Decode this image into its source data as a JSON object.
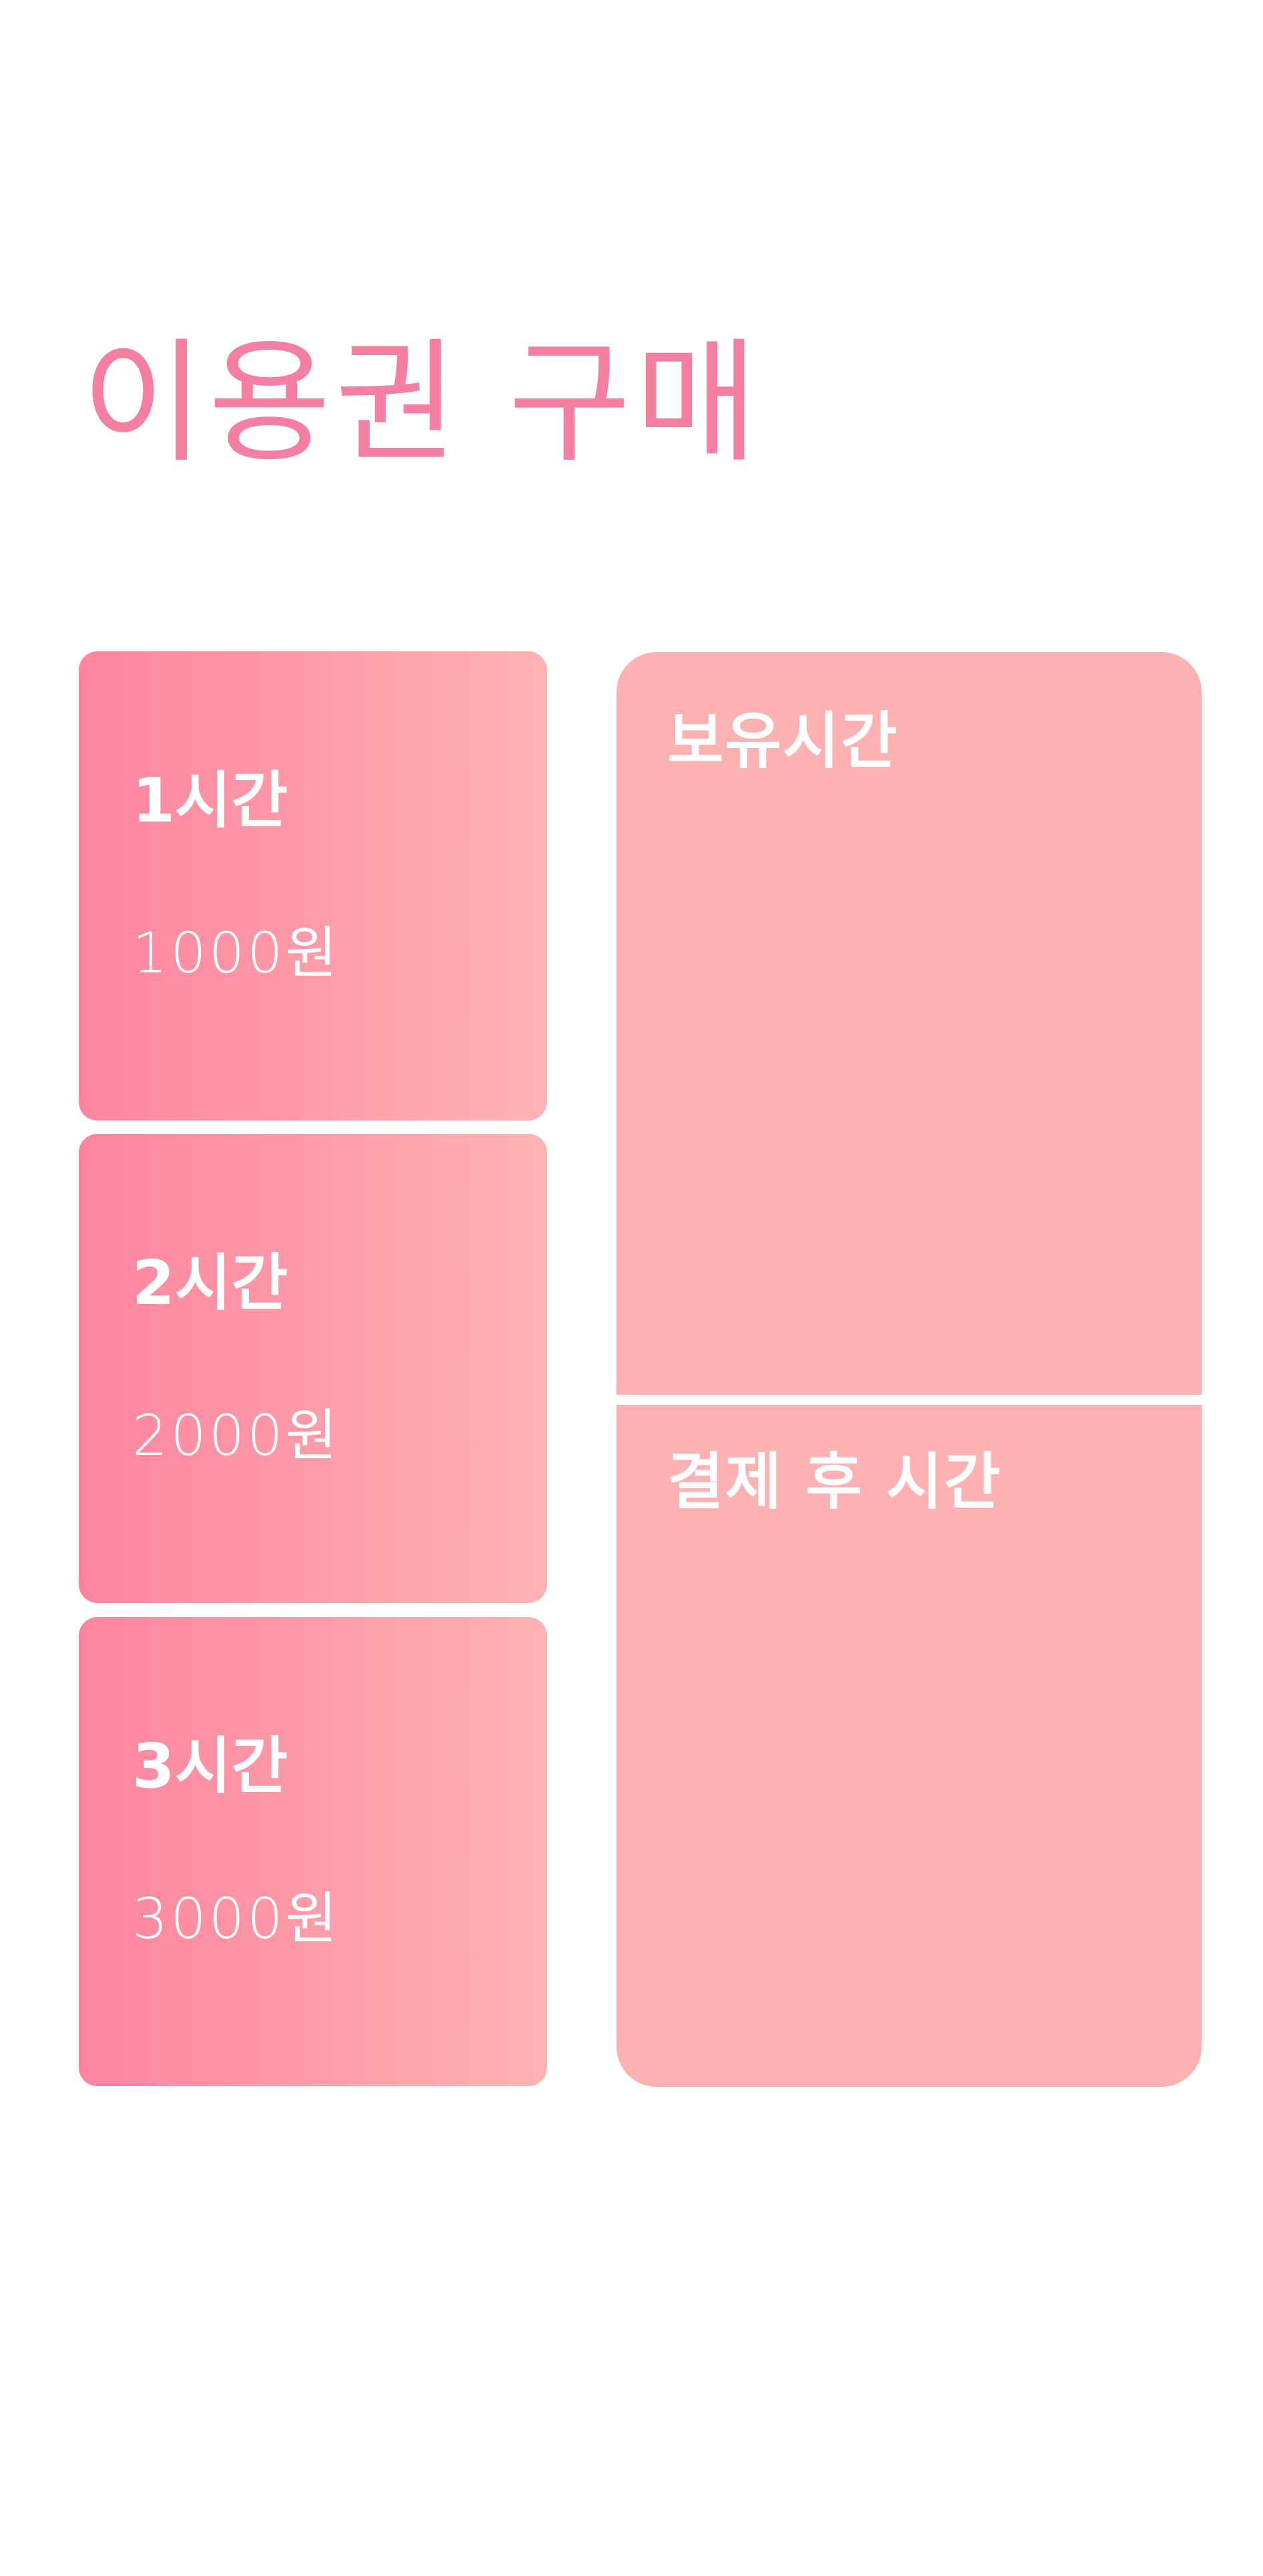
{
  "header": {
    "title": "이용권 구매"
  },
  "tickets": [
    {
      "name": "1시간",
      "price": "1000원"
    },
    {
      "name": "2시간",
      "price": "2000원"
    },
    {
      "name": "3시간",
      "price": "3000원"
    }
  ],
  "panels": {
    "owned_time": {
      "label": "보유시간"
    },
    "after_payment_time": {
      "label": "결제 후 시간"
    }
  },
  "colors": {
    "title": "#f57fa0",
    "ticket_gradient_start": "#fe849e",
    "ticket_gradient_end": "#feb3b4",
    "panel_background": "#feb1b3",
    "text_on_color": "#ffffff"
  }
}
